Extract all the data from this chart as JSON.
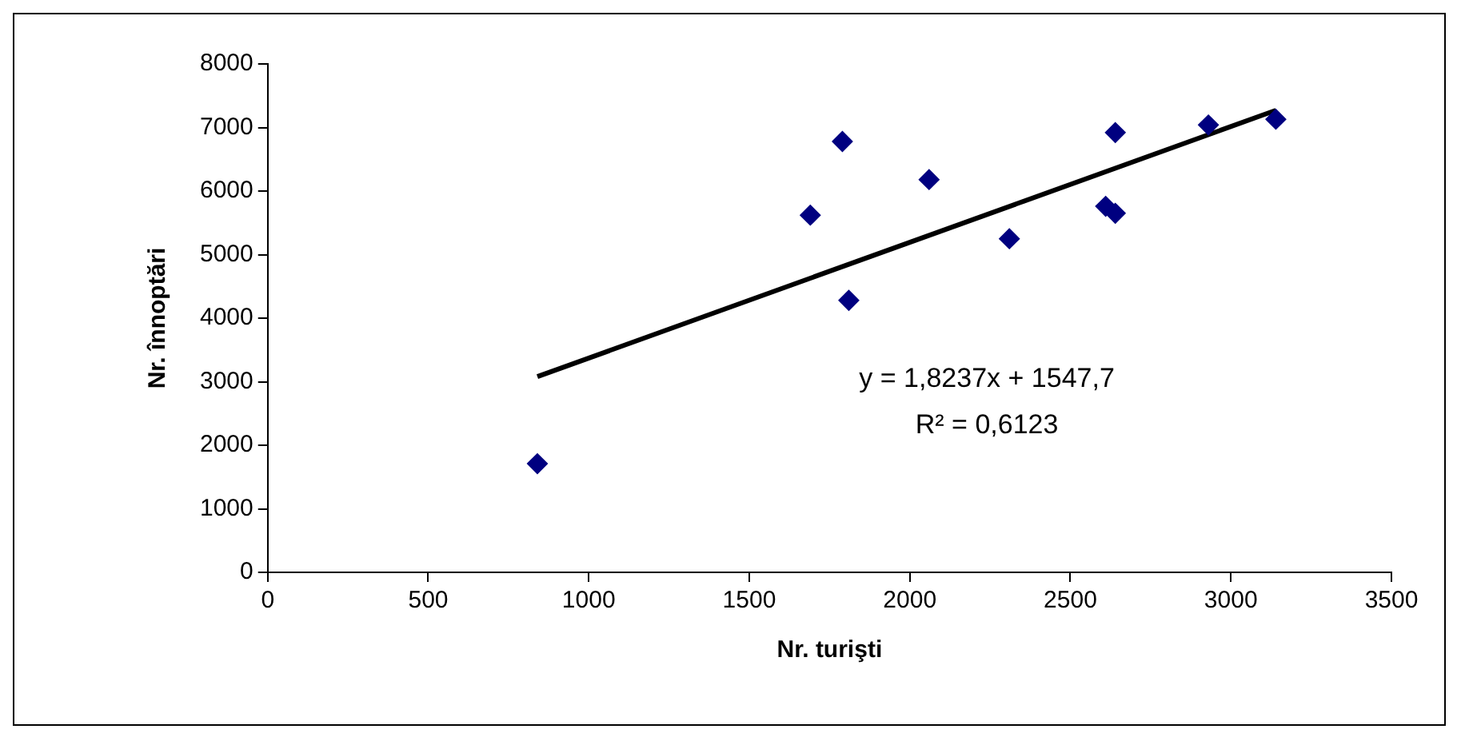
{
  "chart_data": {
    "type": "scatter",
    "xlabel": "Nr. turişti",
    "ylabel": "Nr. înnoptări",
    "xlim": [
      0,
      3500
    ],
    "xticks": [
      0,
      500,
      1000,
      1500,
      2000,
      2500,
      3000,
      3500
    ],
    "ylim": [
      0,
      8000
    ],
    "yticks": [
      0,
      1000,
      2000,
      3000,
      4000,
      5000,
      6000,
      7000,
      8000
    ],
    "grid": false,
    "legend": false,
    "marker": "diamond",
    "series": [
      {
        "type": "scatter",
        "color": "#000080",
        "x": [
          840,
          1690,
          1790,
          1810,
          2060,
          2310,
          2610,
          2640,
          2640,
          2930,
          3140
        ],
        "values": [
          1710,
          5620,
          6780,
          4280,
          6180,
          5250,
          5760,
          5650,
          6920,
          7040,
          7130
        ]
      },
      {
        "type": "line",
        "color": "#000000",
        "marker": "none",
        "x": [
          840,
          3140
        ],
        "values": [
          3080,
          7270
        ]
      }
    ],
    "annotations": [
      "y = 1,8237x + 1547,7",
      "R² = 0,6123"
    ]
  }
}
